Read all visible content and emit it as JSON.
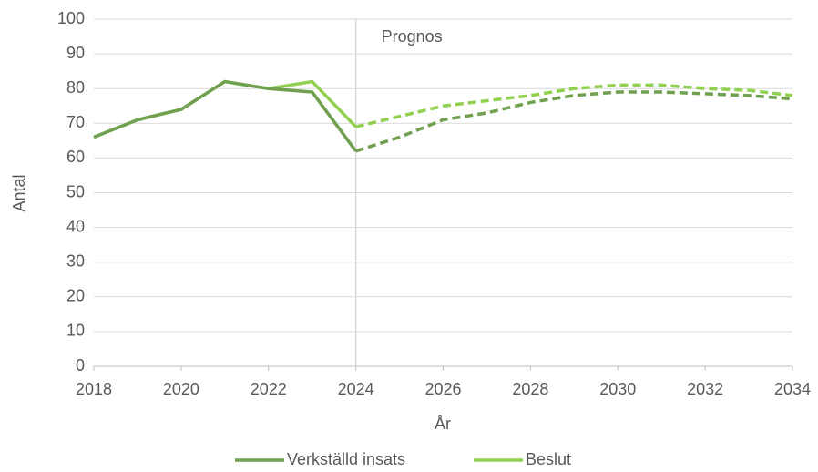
{
  "chart_data": {
    "type": "line",
    "x_label": "År",
    "y_label": "Antal",
    "x": [
      2018,
      2019,
      2020,
      2021,
      2022,
      2023,
      2024,
      2025,
      2026,
      2027,
      2028,
      2029,
      2030,
      2031,
      2032,
      2033,
      2034
    ],
    "series": [
      {
        "name": "Verkställd insats",
        "color": "#70a050",
        "values": [
          66,
          71,
          74,
          82,
          80,
          79,
          62,
          66,
          71,
          73,
          76,
          78,
          79,
          79,
          78.5,
          78,
          77
        ]
      },
      {
        "name": "Beslut",
        "color": "#92d050",
        "values": [
          66,
          71,
          74,
          82,
          80,
          82,
          69,
          72,
          75,
          76.5,
          78,
          80,
          81,
          81,
          80,
          79.5,
          78
        ]
      }
    ],
    "forecast": {
      "label": "Prognos",
      "x": 2024
    },
    "xlim": [
      2018,
      2034
    ],
    "xticks": [
      2018,
      2020,
      2022,
      2024,
      2026,
      2028,
      2030,
      2032,
      2034
    ],
    "ylim": [
      0,
      100
    ],
    "yticks": [
      0,
      10,
      20,
      30,
      40,
      50,
      60,
      70,
      80,
      90,
      100
    ],
    "grid": true,
    "legend": "bottom"
  }
}
